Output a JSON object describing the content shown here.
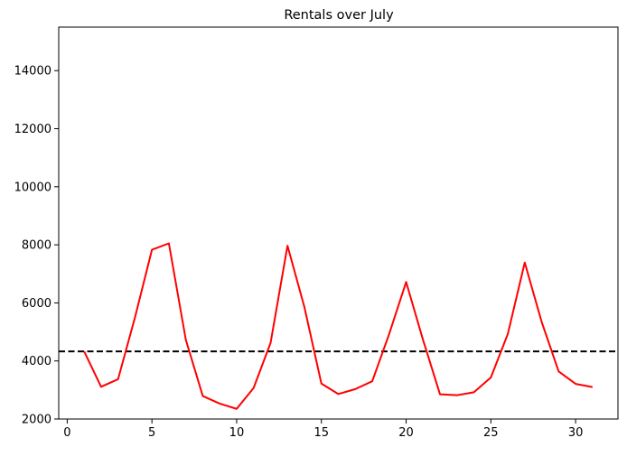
{
  "chart_data": {
    "type": "line",
    "title": "Rentals over July",
    "xlabel": "",
    "ylabel": "",
    "xlim": [
      -0.5,
      32.5
    ],
    "ylim": [
      2000,
      15500
    ],
    "x_ticks": [
      0,
      5,
      10,
      15,
      20,
      25,
      30
    ],
    "y_ticks": [
      2000,
      4000,
      6000,
      8000,
      10000,
      12000,
      14000
    ],
    "grid": false,
    "legend": "none",
    "series": [
      {
        "color": "#ff0000",
        "style": "solid",
        "x": [
          1,
          2,
          3,
          4,
          5,
          6,
          7,
          8,
          9,
          10,
          11,
          12,
          13,
          14,
          15,
          16,
          17,
          18,
          19,
          20,
          21,
          22,
          23,
          24,
          25,
          26,
          27,
          28,
          29,
          30,
          31
        ],
        "values": [
          4330,
          3110,
          3370,
          5500,
          7830,
          8050,
          4730,
          2790,
          2530,
          2350,
          3070,
          4620,
          7970,
          5850,
          3220,
          2860,
          3030,
          3300,
          4930,
          6720,
          4720,
          2850,
          2820,
          2920,
          3430,
          4930,
          7390,
          5340,
          3640,
          3210,
          3100
        ]
      }
    ],
    "reference_line": {
      "orientation": "horizontal",
      "value": 4330,
      "color": "#000000",
      "style": "dashed"
    }
  }
}
